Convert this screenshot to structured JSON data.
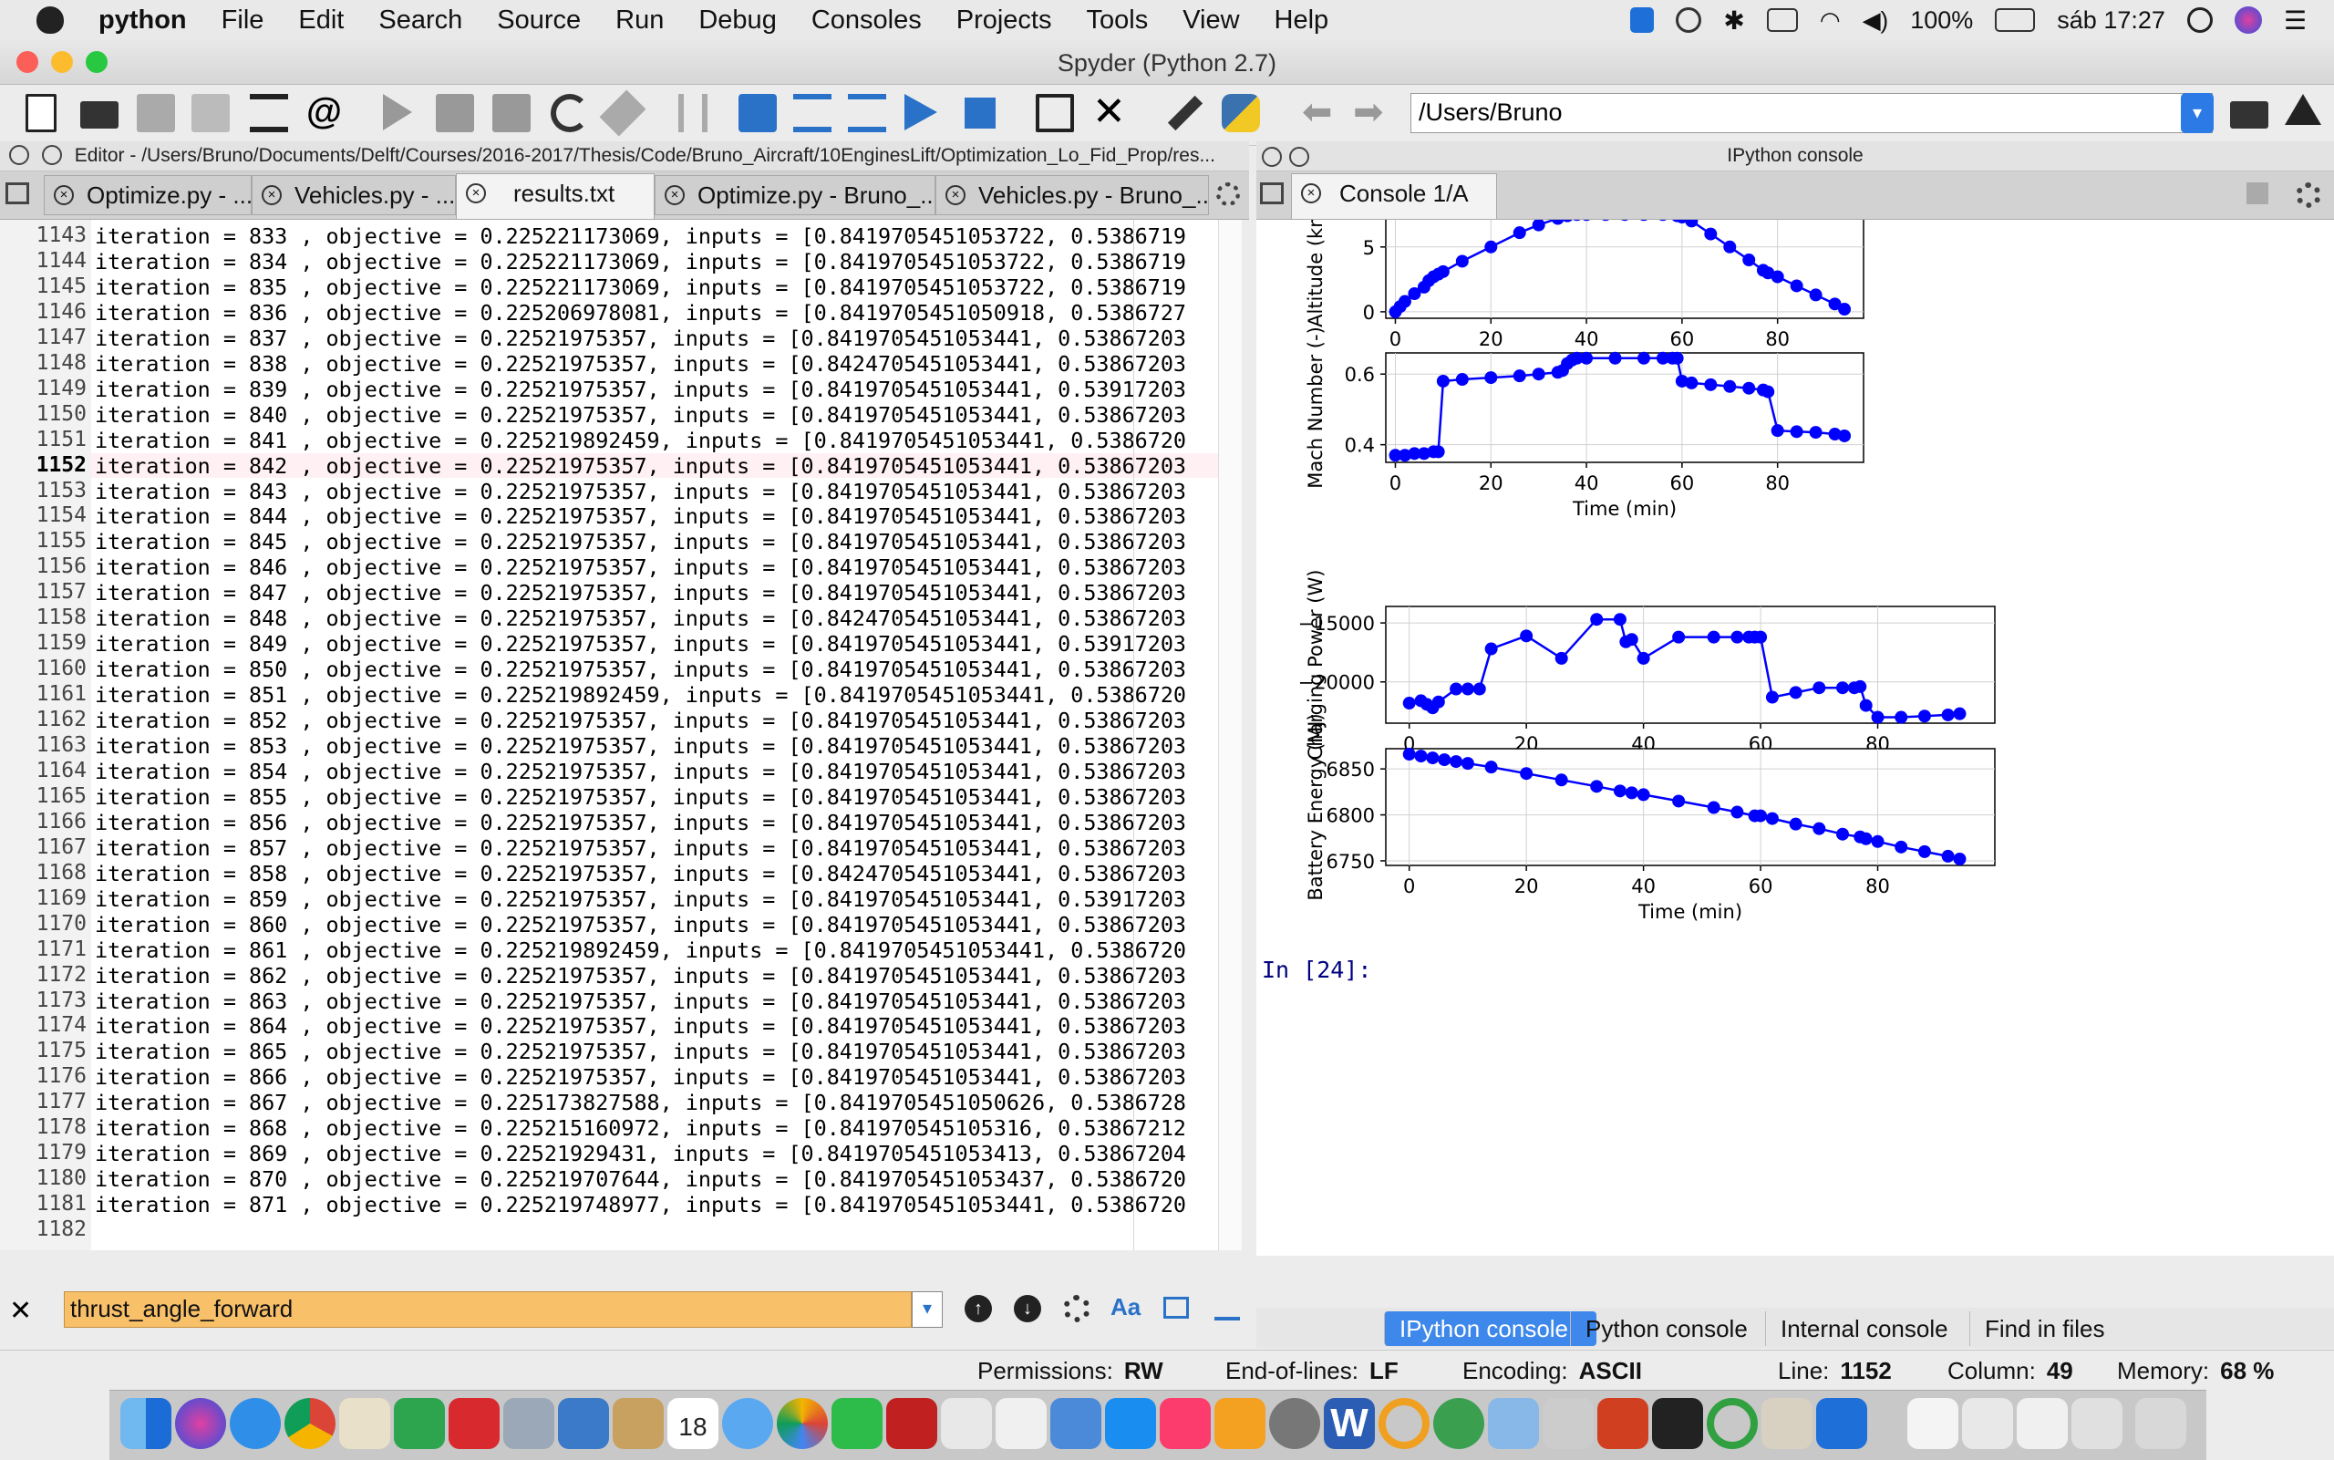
{
  "menubar": {
    "app": "python",
    "items": [
      "File",
      "Edit",
      "Search",
      "Source",
      "Run",
      "Debug",
      "Consoles",
      "Projects",
      "Tools",
      "View",
      "Help"
    ],
    "battery": "100%",
    "clock": "sáb 17:27"
  },
  "window": {
    "title": "Spyder (Python 2.7)"
  },
  "toolbar": {
    "path": "/Users/Bruno"
  },
  "editor": {
    "header": "Editor - /Users/Bruno/Documents/Delft/Courses/2016-2017/Thesis/Code/Bruno_Aircraft/10EnginesLift/Optimization_Lo_Fid_Prop/res...",
    "tabs": [
      "Optimize.py - ...",
      "Vehicles.py - ...",
      "results.txt",
      "Optimize.py - Bruno_...",
      "Vehicles.py - Bruno_..."
    ],
    "current_line": 1152,
    "first_line": 1143,
    "lines": [
      "iteration = 833 , objective = 0.225221173069, inputs = [0.8419705451053722, 0.5386719",
      "iteration = 834 , objective = 0.225221173069, inputs = [0.8419705451053722, 0.5386719",
      "iteration = 835 , objective = 0.225221173069, inputs = [0.8419705451053722, 0.5386719",
      "iteration = 836 , objective = 0.225206978081, inputs = [0.8419705451050918, 0.5386727",
      "iteration = 837 , objective = 0.22521975357, inputs = [0.8419705451053441, 0.53867203",
      "iteration = 838 , objective = 0.22521975357, inputs = [0.8424705451053441, 0.53867203",
      "iteration = 839 , objective = 0.22521975357, inputs = [0.8419705451053441, 0.53917203",
      "iteration = 840 , objective = 0.22521975357, inputs = [0.8419705451053441, 0.53867203",
      "iteration = 841 , objective = 0.225219892459, inputs = [0.8419705451053441, 0.5386720",
      "iteration = 842 , objective = 0.22521975357, inputs = [0.8419705451053441, 0.53867203",
      "iteration = 843 , objective = 0.22521975357, inputs = [0.8419705451053441, 0.53867203",
      "iteration = 844 , objective = 0.22521975357, inputs = [0.8419705451053441, 0.53867203",
      "iteration = 845 , objective = 0.22521975357, inputs = [0.8419705451053441, 0.53867203",
      "iteration = 846 , objective = 0.22521975357, inputs = [0.8419705451053441, 0.53867203",
      "iteration = 847 , objective = 0.22521975357, inputs = [0.8419705451053441, 0.53867203",
      "iteration = 848 , objective = 0.22521975357, inputs = [0.8424705451053441, 0.53867203",
      "iteration = 849 , objective = 0.22521975357, inputs = [0.8419705451053441, 0.53917203",
      "iteration = 850 , objective = 0.22521975357, inputs = [0.8419705451053441, 0.53867203",
      "iteration = 851 , objective = 0.225219892459, inputs = [0.8419705451053441, 0.5386720",
      "iteration = 852 , objective = 0.22521975357, inputs = [0.8419705451053441, 0.53867203",
      "iteration = 853 , objective = 0.22521975357, inputs = [0.8419705451053441, 0.53867203",
      "iteration = 854 , objective = 0.22521975357, inputs = [0.8419705451053441, 0.53867203",
      "iteration = 855 , objective = 0.22521975357, inputs = [0.8419705451053441, 0.53867203",
      "iteration = 856 , objective = 0.22521975357, inputs = [0.8419705451053441, 0.53867203",
      "iteration = 857 , objective = 0.22521975357, inputs = [0.8419705451053441, 0.53867203",
      "iteration = 858 , objective = 0.22521975357, inputs = [0.8424705451053441, 0.53867203",
      "iteration = 859 , objective = 0.22521975357, inputs = [0.8419705451053441, 0.53917203",
      "iteration = 860 , objective = 0.22521975357, inputs = [0.8419705451053441, 0.53867203",
      "iteration = 861 , objective = 0.225219892459, inputs = [0.8419705451053441, 0.5386720",
      "iteration = 862 , objective = 0.22521975357, inputs = [0.8419705451053441, 0.53867203",
      "iteration = 863 , objective = 0.22521975357, inputs = [0.8419705451053441, 0.53867203",
      "iteration = 864 , objective = 0.22521975357, inputs = [0.8419705451053441, 0.53867203",
      "iteration = 865 , objective = 0.22521975357, inputs = [0.8419705451053441, 0.53867203",
      "iteration = 866 , objective = 0.22521975357, inputs = [0.8419705451053441, 0.53867203",
      "iteration = 867 , objective = 0.225173827588, inputs = [0.8419705451050626, 0.5386728",
      "iteration = 868 , objective = 0.225215160972, inputs = [0.841970545105316, 0.53867212",
      "iteration = 869 , objective = 0.22521929431, inputs = [0.8419705451053413, 0.53867204",
      "iteration = 870 , objective = 0.225219707644, inputs = [0.8419705451053437, 0.5386720",
      "iteration = 871 , objective = 0.225219748977, inputs = [0.8419705451053441, 0.5386720",
      ""
    ]
  },
  "findbar": {
    "query": "thrust_angle_forward"
  },
  "console": {
    "header": "IPython console",
    "tab": "Console 1/A",
    "prompt": "In [24]:"
  },
  "bottom_tabs": [
    "IPython console",
    "Python console",
    "Internal console",
    "Find in files"
  ],
  "statusbar": {
    "permissions_label": "Permissions:",
    "permissions": "RW",
    "eol_label": "End-of-lines:",
    "eol": "LF",
    "encoding_label": "Encoding:",
    "encoding": "ASCII",
    "line_label": "Line:",
    "line": "1152",
    "column_label": "Column:",
    "column": "49",
    "memory_label": "Memory:",
    "memory": "68 %"
  },
  "dock": {
    "calendar_day": "18"
  },
  "chart_data": [
    {
      "type": "line",
      "ylabel": "Altitude (km)",
      "xticks": [
        0,
        20,
        40,
        60,
        80
      ],
      "yticks": [
        0,
        5
      ],
      "xlim": [
        -2,
        98
      ],
      "ylim": [
        -0.5,
        7.8
      ],
      "x": [
        0,
        1,
        2,
        4,
        6,
        7,
        8,
        9,
        10,
        14,
        20,
        26,
        30,
        34,
        36,
        38,
        40,
        44,
        48,
        52,
        56,
        59,
        60,
        62,
        66,
        70,
        74,
        77,
        78,
        80,
        84,
        88,
        92,
        94
      ],
      "y": [
        0,
        0.4,
        0.8,
        1.4,
        1.9,
        2.4,
        2.7,
        2.9,
        3.1,
        3.9,
        5.0,
        6.1,
        6.7,
        7.2,
        7.4,
        7.5,
        7.5,
        7.5,
        7.5,
        7.5,
        7.5,
        7.4,
        7.3,
        7.0,
        6.0,
        5.0,
        4.0,
        3.2,
        3.0,
        2.7,
        2.0,
        1.3,
        0.6,
        0.2
      ]
    },
    {
      "type": "line",
      "xlabel": "Time (min)",
      "ylabel": "Mach Number (-)",
      "xticks": [
        0,
        20,
        40,
        60,
        80
      ],
      "yticks": [
        0.4,
        0.6
      ],
      "xlim": [
        -2,
        98
      ],
      "ylim": [
        0.35,
        0.66
      ],
      "x": [
        0,
        2,
        4,
        6,
        8,
        9,
        10,
        14,
        20,
        26,
        30,
        34,
        35,
        36,
        37,
        38,
        40,
        46,
        52,
        56,
        58,
        59,
        60,
        62,
        66,
        70,
        74,
        77,
        78,
        80,
        84,
        88,
        92,
        94
      ],
      "y": [
        0.37,
        0.37,
        0.375,
        0.375,
        0.38,
        0.38,
        0.58,
        0.585,
        0.59,
        0.595,
        0.6,
        0.605,
        0.61,
        0.63,
        0.64,
        0.645,
        0.645,
        0.645,
        0.645,
        0.645,
        0.645,
        0.645,
        0.58,
        0.575,
        0.57,
        0.565,
        0.56,
        0.555,
        0.55,
        0.44,
        0.437,
        0.435,
        0.43,
        0.425
      ]
    },
    {
      "type": "line",
      "ylabel": "Charging Power (W)",
      "xticks": [
        0,
        20,
        40,
        60,
        80
      ],
      "yticks": [
        -15000,
        -20000
      ],
      "xlim": [
        -4,
        100
      ],
      "ylim": [
        -23500,
        -13600
      ],
      "x": [
        0,
        2,
        3,
        4,
        5,
        8,
        10,
        12,
        14,
        20,
        26,
        32,
        36,
        37,
        38,
        40,
        46,
        52,
        56,
        58,
        59,
        60,
        62,
        66,
        70,
        74,
        76,
        77,
        78,
        80,
        84,
        88,
        92,
        94
      ],
      "y": [
        -21800,
        -21600,
        -21900,
        -22200,
        -21700,
        -20600,
        -20600,
        -20600,
        -17200,
        -16100,
        -18000,
        -14700,
        -14700,
        -16600,
        -16400,
        -18000,
        -16200,
        -16200,
        -16200,
        -16200,
        -16200,
        -16200,
        -21300,
        -20900,
        -20500,
        -20500,
        -20500,
        -20400,
        -22000,
        -23000,
        -23000,
        -22900,
        -22800,
        -22700
      ]
    },
    {
      "type": "line",
      "xlabel": "Time (min)",
      "ylabel": "Battery Energy (MJ)",
      "xticks": [
        0,
        20,
        40,
        60,
        80
      ],
      "yticks": [
        6750,
        6800,
        6850
      ],
      "xlim": [
        -4,
        100
      ],
      "ylim": [
        6745,
        6872
      ],
      "x": [
        0,
        2,
        4,
        6,
        8,
        10,
        14,
        20,
        26,
        32,
        36,
        38,
        40,
        46,
        52,
        56,
        59,
        60,
        62,
        66,
        70,
        74,
        77,
        78,
        80,
        84,
        88,
        92,
        94
      ],
      "y": [
        6866,
        6864,
        6862,
        6860,
        6858,
        6856,
        6852,
        6845,
        6838,
        6831,
        6826,
        6824,
        6822,
        6815,
        6808,
        6803,
        6799,
        6799,
        6796,
        6790,
        6785,
        6779,
        6776,
        6774,
        6771,
        6765,
        6760,
        6755,
        6752
      ]
    }
  ]
}
